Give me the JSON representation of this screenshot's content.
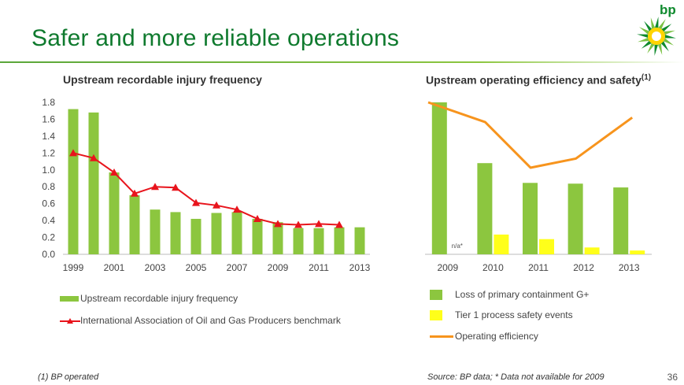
{
  "slide": {
    "title": "Safer and more reliable operations",
    "logo_text": "bp",
    "footnote_left": "(1) BP operated",
    "footnote_right": "Source: BP data; * Data not available for 2009",
    "page_number": "36",
    "title_color": "#0f7a2e",
    "rule_color": "#8cc63f"
  },
  "chart_data": [
    {
      "type": "bar",
      "title": "Upstream recordable injury frequency",
      "categories": [
        "1999",
        "2000",
        "2001",
        "2002",
        "2003",
        "2004",
        "2005",
        "2006",
        "2007",
        "2008",
        "2009",
        "2010",
        "2011",
        "2012",
        "2013"
      ],
      "x_tick_labels": [
        "1999",
        "2001",
        "2003",
        "2005",
        "2007",
        "2009",
        "2011",
        "2013"
      ],
      "y_ticks": [
        "0.0",
        "0.2",
        "0.4",
        "0.6",
        "0.8",
        "1.0",
        "1.2",
        "1.4",
        "1.6",
        "1.8"
      ],
      "ylim": [
        0,
        1.8
      ],
      "series": [
        {
          "name": "Upstream recordable injury frequency",
          "kind": "bar",
          "color": "#8cc63f",
          "values": [
            1.72,
            1.68,
            0.97,
            0.7,
            0.53,
            0.5,
            0.42,
            0.49,
            0.5,
            0.42,
            0.38,
            0.31,
            0.31,
            0.32,
            0.32
          ]
        },
        {
          "name": "International Association of Oil and Gas Producers benchmark",
          "kind": "line",
          "color": "#e8141c",
          "values": [
            1.2,
            1.14,
            0.97,
            0.72,
            0.8,
            0.79,
            0.61,
            0.58,
            0.53,
            0.42,
            0.36,
            0.35,
            0.36,
            0.35,
            null
          ]
        }
      ]
    },
    {
      "type": "bar",
      "title": "Upstream operating efficiency and safety",
      "title_superscript": "(1)",
      "categories": [
        "2009",
        "2010",
        "2011",
        "2012",
        "2013"
      ],
      "annotations": [
        {
          "category": "2009",
          "text": "n/a*"
        }
      ],
      "series": [
        {
          "name": "Loss of primary containment G+",
          "kind": "bar",
          "color": "#8cc63f",
          "values": [
            100,
            60,
            47,
            46.5,
            44
          ]
        },
        {
          "name": "Tier 1 process safety events",
          "kind": "bar",
          "color": "#ffff1a",
          "values": [
            null,
            13,
            10,
            4.5,
            2.5
          ]
        },
        {
          "name": "Operating efficiency",
          "kind": "line",
          "color": "#f7941d",
          "values": [
            100,
            87,
            57,
            63,
            90
          ]
        }
      ]
    }
  ]
}
